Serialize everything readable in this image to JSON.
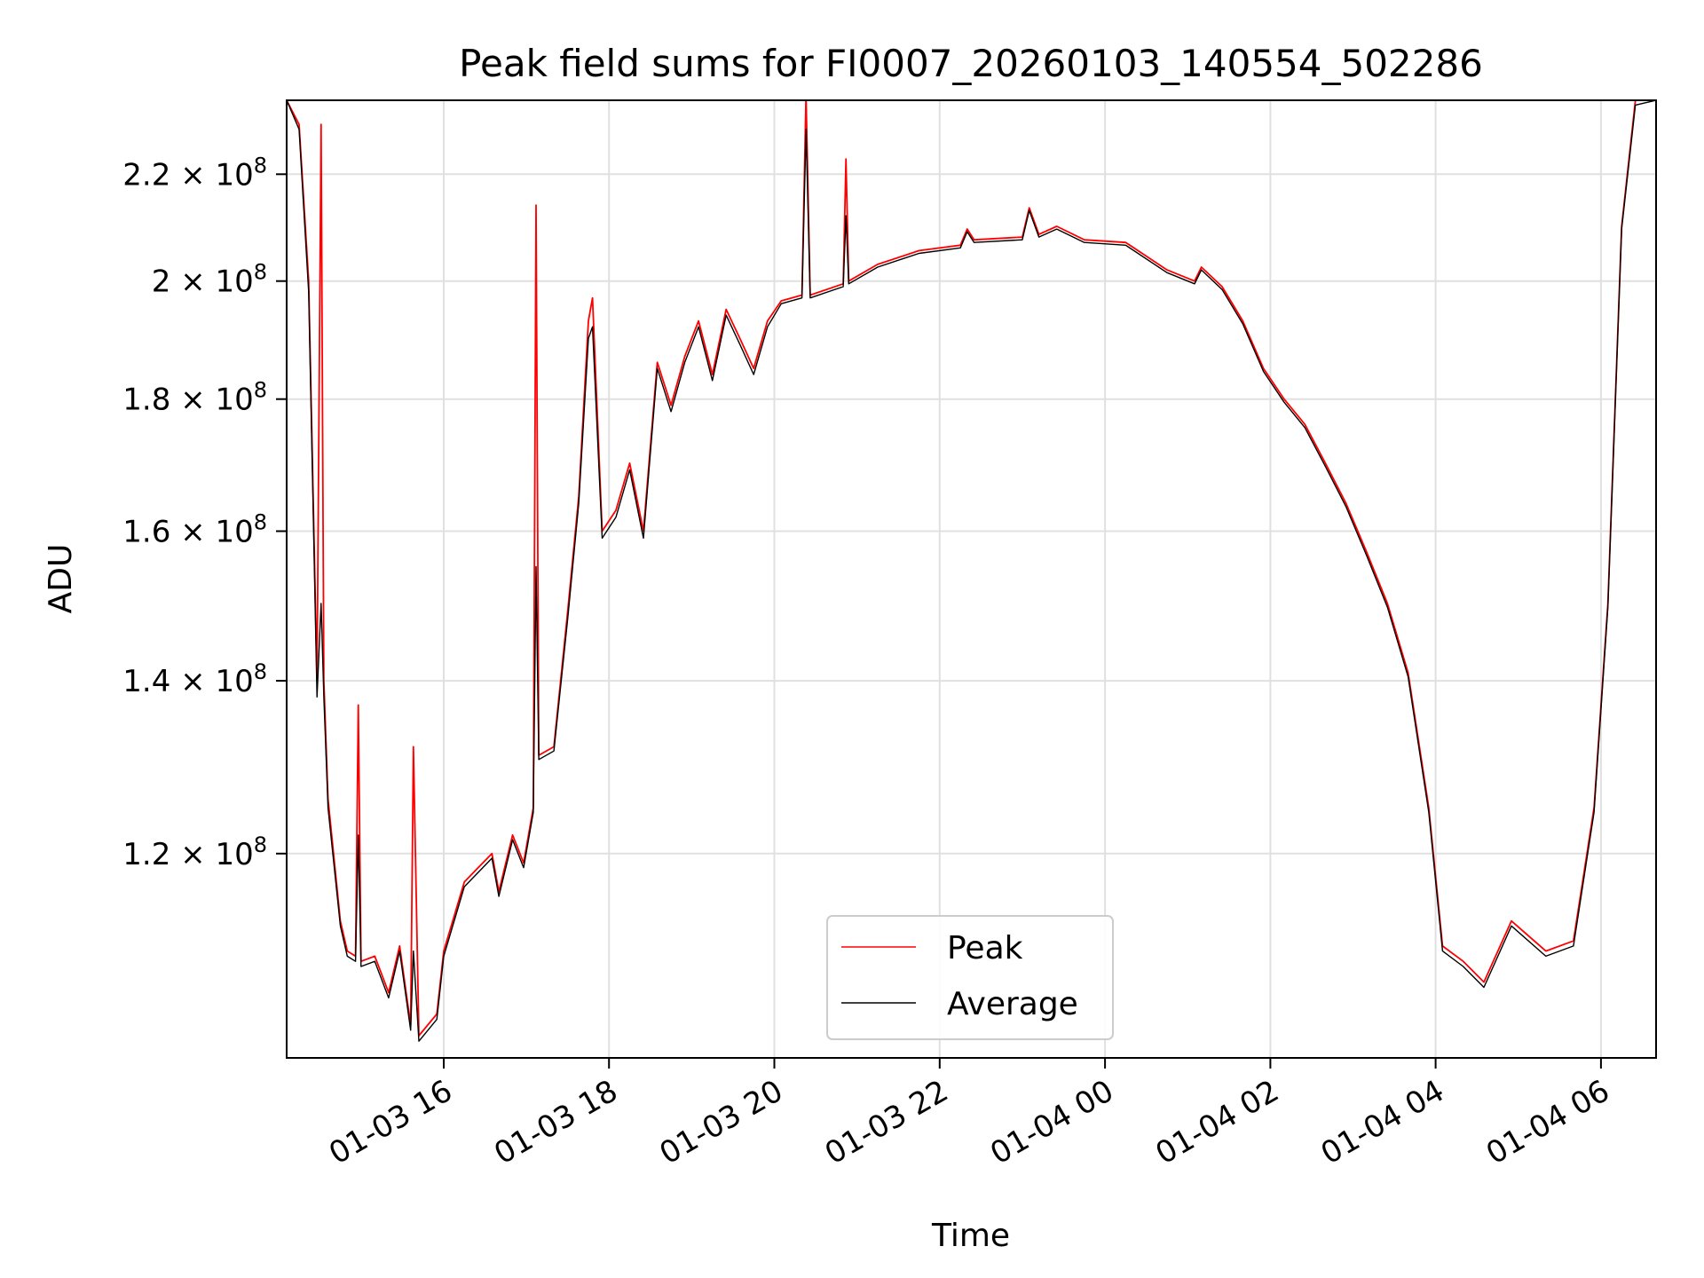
{
  "chart_data": {
    "type": "line",
    "title": "Peak field sums for FI0007_20260103_140554_502286",
    "xlabel": "Time",
    "ylabel": "ADU",
    "xlim": [
      "2026-01-03 14:06",
      "2026-01-04 06:40"
    ],
    "ylim": [
      100000000,
      235000000
    ],
    "yscale": "log",
    "grid": true,
    "legend_position": "lower center",
    "x_ticks": [
      {
        "value": "2026-01-03 16:00",
        "label": "01-03 16"
      },
      {
        "value": "2026-01-03 18:00",
        "label": "01-03 18"
      },
      {
        "value": "2026-01-03 20:00",
        "label": "01-03 20"
      },
      {
        "value": "2026-01-03 22:00",
        "label": "01-03 22"
      },
      {
        "value": "2026-01-04 00:00",
        "label": "01-04 00"
      },
      {
        "value": "2026-01-04 02:00",
        "label": "01-04 02"
      },
      {
        "value": "2026-01-04 04:00",
        "label": "01-04 04"
      },
      {
        "value": "2026-01-04 06:00",
        "label": "01-04 06"
      }
    ],
    "y_ticks": [
      {
        "value": 120000000,
        "mantissa": "1.2",
        "exponent": "8"
      },
      {
        "value": 140000000,
        "mantissa": "1.4",
        "exponent": "8"
      },
      {
        "value": 160000000,
        "mantissa": "1.6",
        "exponent": "8"
      },
      {
        "value": 180000000,
        "mantissa": "1.8",
        "exponent": "8"
      },
      {
        "value": 200000000,
        "mantissa": "2",
        "exponent": "8"
      },
      {
        "value": 220000000,
        "mantissa": "2.2",
        "exponent": "8"
      }
    ],
    "series": [
      {
        "name": "Peak",
        "color": "#ff0000",
        "points": [
          [
            "2026-01-03 14:06",
            235000000
          ],
          [
            "2026-01-03 14:15",
            230000000
          ],
          [
            "2026-01-03 14:22",
            200000000
          ],
          [
            "2026-01-03 14:28",
            140000000
          ],
          [
            "2026-01-03 14:31",
            230000000
          ],
          [
            "2026-01-03 14:33",
            140000000
          ],
          [
            "2026-01-03 14:36",
            126000000
          ],
          [
            "2026-01-03 14:45",
            113000000
          ],
          [
            "2026-01-03 14:50",
            110000000
          ],
          [
            "2026-01-03 14:56",
            109500000
          ],
          [
            "2026-01-03 14:58",
            137000000
          ],
          [
            "2026-01-03 15:00",
            109000000
          ],
          [
            "2026-01-03 15:10",
            109500000
          ],
          [
            "2026-01-03 15:20",
            106000000
          ],
          [
            "2026-01-03 15:28",
            110500000
          ],
          [
            "2026-01-03 15:36",
            103000000
          ],
          [
            "2026-01-03 15:38",
            132000000
          ],
          [
            "2026-01-03 15:42",
            102000000
          ],
          [
            "2026-01-03 15:55",
            104000000
          ],
          [
            "2026-01-03 16:00",
            110000000
          ],
          [
            "2026-01-03 16:15",
            117000000
          ],
          [
            "2026-01-03 16:25",
            118500000
          ],
          [
            "2026-01-03 16:35",
            120000000
          ],
          [
            "2026-01-03 16:40",
            116000000
          ],
          [
            "2026-01-03 16:50",
            122000000
          ],
          [
            "2026-01-03 16:58",
            119000000
          ],
          [
            "2026-01-03 17:05",
            125000000
          ],
          [
            "2026-01-03 17:07",
            214000000
          ],
          [
            "2026-01-03 17:09",
            131000000
          ],
          [
            "2026-01-03 17:20",
            132000000
          ],
          [
            "2026-01-03 17:30",
            149000000
          ],
          [
            "2026-01-03 17:38",
            165000000
          ],
          [
            "2026-01-03 17:45",
            193000000
          ],
          [
            "2026-01-03 17:48",
            197000000
          ],
          [
            "2026-01-03 17:55",
            160000000
          ],
          [
            "2026-01-03 18:05",
            163000000
          ],
          [
            "2026-01-03 18:15",
            170000000
          ],
          [
            "2026-01-03 18:25",
            160000000
          ],
          [
            "2026-01-03 18:35",
            186000000
          ],
          [
            "2026-01-03 18:45",
            179000000
          ],
          [
            "2026-01-03 18:55",
            187000000
          ],
          [
            "2026-01-03 19:05",
            193000000
          ],
          [
            "2026-01-03 19:15",
            184000000
          ],
          [
            "2026-01-03 19:25",
            195000000
          ],
          [
            "2026-01-03 19:35",
            190000000
          ],
          [
            "2026-01-03 19:45",
            185000000
          ],
          [
            "2026-01-03 19:55",
            193000000
          ],
          [
            "2026-01-03 20:05",
            196500000
          ],
          [
            "2026-01-03 20:20",
            197500000
          ],
          [
            "2026-01-03 20:23",
            236000000
          ],
          [
            "2026-01-03 20:26",
            197500000
          ],
          [
            "2026-01-03 20:50",
            199500000
          ],
          [
            "2026-01-03 20:52",
            223000000
          ],
          [
            "2026-01-03 20:54",
            200000000
          ],
          [
            "2026-01-03 21:15",
            203000000
          ],
          [
            "2026-01-03 21:45",
            205500000
          ],
          [
            "2026-01-03 22:15",
            206500000
          ],
          [
            "2026-01-03 22:20",
            209500000
          ],
          [
            "2026-01-03 22:25",
            207500000
          ],
          [
            "2026-01-03 23:00",
            208000000
          ],
          [
            "2026-01-03 23:05",
            213500000
          ],
          [
            "2026-01-03 23:12",
            208500000
          ],
          [
            "2026-01-03 23:25",
            210000000
          ],
          [
            "2026-01-03 23:45",
            207500000
          ],
          [
            "2026-01-04 00:15",
            207000000
          ],
          [
            "2026-01-04 00:45",
            202000000
          ],
          [
            "2026-01-04 01:05",
            200000000
          ],
          [
            "2026-01-04 01:10",
            202500000
          ],
          [
            "2026-01-04 01:25",
            199000000
          ],
          [
            "2026-01-04 01:40",
            193000000
          ],
          [
            "2026-01-04 01:55",
            185000000
          ],
          [
            "2026-01-04 02:10",
            180000000
          ],
          [
            "2026-01-04 02:25",
            176000000
          ],
          [
            "2026-01-04 02:40",
            170000000
          ],
          [
            "2026-01-04 02:55",
            164000000
          ],
          [
            "2026-01-04 03:10",
            157000000
          ],
          [
            "2026-01-04 03:25",
            150000000
          ],
          [
            "2026-01-04 03:40",
            141000000
          ],
          [
            "2026-01-04 03:55",
            125000000
          ],
          [
            "2026-01-04 04:05",
            110500000
          ],
          [
            "2026-01-04 04:20",
            109000000
          ],
          [
            "2026-01-04 04:35",
            107000000
          ],
          [
            "2026-01-04 04:55",
            113000000
          ],
          [
            "2026-01-04 05:20",
            110000000
          ],
          [
            "2026-01-04 05:40",
            111000000
          ],
          [
            "2026-01-04 05:55",
            125000000
          ],
          [
            "2026-01-04 06:05",
            150000000
          ],
          [
            "2026-01-04 06:15",
            210000000
          ],
          [
            "2026-01-04 06:25",
            235000000
          ],
          [
            "2026-01-04 06:40",
            235000000
          ]
        ]
      },
      {
        "name": "Average",
        "color": "#000000",
        "points": [
          [
            "2026-01-03 14:06",
            235000000
          ],
          [
            "2026-01-03 14:15",
            229000000
          ],
          [
            "2026-01-03 14:22",
            198000000
          ],
          [
            "2026-01-03 14:28",
            138000000
          ],
          [
            "2026-01-03 14:31",
            150000000
          ],
          [
            "2026-01-03 14:33",
            138000000
          ],
          [
            "2026-01-03 14:36",
            125000000
          ],
          [
            "2026-01-03 14:45",
            112500000
          ],
          [
            "2026-01-03 14:50",
            109500000
          ],
          [
            "2026-01-03 14:56",
            109000000
          ],
          [
            "2026-01-03 14:58",
            122000000
          ],
          [
            "2026-01-03 15:00",
            108500000
          ],
          [
            "2026-01-03 15:10",
            109000000
          ],
          [
            "2026-01-03 15:20",
            105500000
          ],
          [
            "2026-01-03 15:28",
            110000000
          ],
          [
            "2026-01-03 15:36",
            102500000
          ],
          [
            "2026-01-03 15:38",
            110000000
          ],
          [
            "2026-01-03 15:42",
            101500000
          ],
          [
            "2026-01-03 15:55",
            103500000
          ],
          [
            "2026-01-03 16:00",
            109500000
          ],
          [
            "2026-01-03 16:15",
            116500000
          ],
          [
            "2026-01-03 16:25",
            118000000
          ],
          [
            "2026-01-03 16:35",
            119500000
          ],
          [
            "2026-01-03 16:40",
            115500000
          ],
          [
            "2026-01-03 16:50",
            121500000
          ],
          [
            "2026-01-03 16:58",
            118500000
          ],
          [
            "2026-01-03 17:05",
            124500000
          ],
          [
            "2026-01-03 17:07",
            155000000
          ],
          [
            "2026-01-03 17:09",
            130500000
          ],
          [
            "2026-01-03 17:20",
            131500000
          ],
          [
            "2026-01-03 17:30",
            148000000
          ],
          [
            "2026-01-03 17:38",
            164000000
          ],
          [
            "2026-01-03 17:45",
            190000000
          ],
          [
            "2026-01-03 17:48",
            192000000
          ],
          [
            "2026-01-03 17:55",
            159000000
          ],
          [
            "2026-01-03 18:05",
            162000000
          ],
          [
            "2026-01-03 18:15",
            169000000
          ],
          [
            "2026-01-03 18:25",
            159000000
          ],
          [
            "2026-01-03 18:35",
            185000000
          ],
          [
            "2026-01-03 18:45",
            178000000
          ],
          [
            "2026-01-03 18:55",
            186000000
          ],
          [
            "2026-01-03 19:05",
            192000000
          ],
          [
            "2026-01-03 19:15",
            183000000
          ],
          [
            "2026-01-03 19:25",
            194000000
          ],
          [
            "2026-01-03 19:35",
            189000000
          ],
          [
            "2026-01-03 19:45",
            184000000
          ],
          [
            "2026-01-03 19:55",
            192000000
          ],
          [
            "2026-01-03 20:05",
            196000000
          ],
          [
            "2026-01-03 20:20",
            197000000
          ],
          [
            "2026-01-03 20:23",
            229000000
          ],
          [
            "2026-01-03 20:26",
            197000000
          ],
          [
            "2026-01-03 20:50",
            199000000
          ],
          [
            "2026-01-03 20:52",
            212000000
          ],
          [
            "2026-01-03 20:54",
            199500000
          ],
          [
            "2026-01-03 21:15",
            202500000
          ],
          [
            "2026-01-03 21:45",
            205000000
          ],
          [
            "2026-01-03 22:15",
            206000000
          ],
          [
            "2026-01-03 22:20",
            209000000
          ],
          [
            "2026-01-03 22:25",
            207000000
          ],
          [
            "2026-01-03 23:00",
            207500000
          ],
          [
            "2026-01-03 23:05",
            213000000
          ],
          [
            "2026-01-03 23:12",
            208000000
          ],
          [
            "2026-01-03 23:25",
            209500000
          ],
          [
            "2026-01-03 23:45",
            207000000
          ],
          [
            "2026-01-04 00:15",
            206500000
          ],
          [
            "2026-01-04 00:45",
            201500000
          ],
          [
            "2026-01-04 01:05",
            199500000
          ],
          [
            "2026-01-04 01:10",
            202000000
          ],
          [
            "2026-01-04 01:25",
            198500000
          ],
          [
            "2026-01-04 01:40",
            192500000
          ],
          [
            "2026-01-04 01:55",
            184500000
          ],
          [
            "2026-01-04 02:10",
            179500000
          ],
          [
            "2026-01-04 02:25",
            175500000
          ],
          [
            "2026-01-04 02:40",
            169500000
          ],
          [
            "2026-01-04 02:55",
            163500000
          ],
          [
            "2026-01-04 03:10",
            156500000
          ],
          [
            "2026-01-04 03:25",
            149500000
          ],
          [
            "2026-01-04 03:40",
            140500000
          ],
          [
            "2026-01-04 03:55",
            124500000
          ],
          [
            "2026-01-04 04:05",
            110000000
          ],
          [
            "2026-01-04 04:20",
            108500000
          ],
          [
            "2026-01-04 04:35",
            106500000
          ],
          [
            "2026-01-04 04:55",
            112500000
          ],
          [
            "2026-01-04 05:20",
            109500000
          ],
          [
            "2026-01-04 05:40",
            110500000
          ],
          [
            "2026-01-04 05:55",
            124500000
          ],
          [
            "2026-01-04 06:05",
            149500000
          ],
          [
            "2026-01-04 06:15",
            209500000
          ],
          [
            "2026-01-04 06:25",
            234000000
          ],
          [
            "2026-01-04 06:40",
            235000000
          ]
        ]
      }
    ]
  }
}
